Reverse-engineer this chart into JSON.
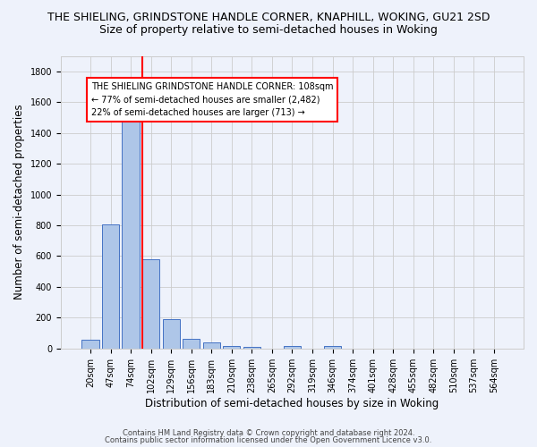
{
  "title": "THE SHIELING, GRINDSTONE HANDLE CORNER, KNAPHILL, WOKING, GU21 2SD",
  "subtitle": "Size of property relative to semi-detached houses in Woking",
  "xlabel": "Distribution of semi-detached houses by size in Woking",
  "ylabel": "Number of semi-detached properties",
  "footer1": "Contains HM Land Registry data © Crown copyright and database right 2024.",
  "footer2": "Contains public sector information licensed under the Open Government Licence v3.0.",
  "bar_labels": [
    "20sqm",
    "47sqm",
    "74sqm",
    "102sqm",
    "129sqm",
    "156sqm",
    "183sqm",
    "210sqm",
    "238sqm",
    "265sqm",
    "292sqm",
    "319sqm",
    "346sqm",
    "374sqm",
    "401sqm",
    "428sqm",
    "455sqm",
    "482sqm",
    "510sqm",
    "537sqm",
    "564sqm"
  ],
  "bar_values": [
    55,
    805,
    1507,
    580,
    190,
    62,
    42,
    18,
    12,
    0,
    15,
    0,
    18,
    0,
    0,
    0,
    0,
    0,
    0,
    0,
    0
  ],
  "annotation_text": "THE SHIELING GRINDSTONE HANDLE CORNER: 108sqm\n← 77% of semi-detached houses are smaller (2,482)\n22% of semi-detached houses are larger (713) →",
  "bar_color": "#aec6e8",
  "bar_edge_color": "#4472c4",
  "vline_color": "red",
  "background_color": "#eef2fb",
  "plot_bg_color": "#eef2fb",
  "ylim": [
    0,
    1900
  ],
  "yticks": [
    0,
    200,
    400,
    600,
    800,
    1000,
    1200,
    1400,
    1600,
    1800
  ],
  "annotation_box_color": "white",
  "annotation_box_edge": "red",
  "title_fontsize": 9,
  "subtitle_fontsize": 9,
  "axis_label_fontsize": 8.5,
  "tick_fontsize": 7,
  "annotation_fontsize": 7,
  "footer_fontsize": 6
}
